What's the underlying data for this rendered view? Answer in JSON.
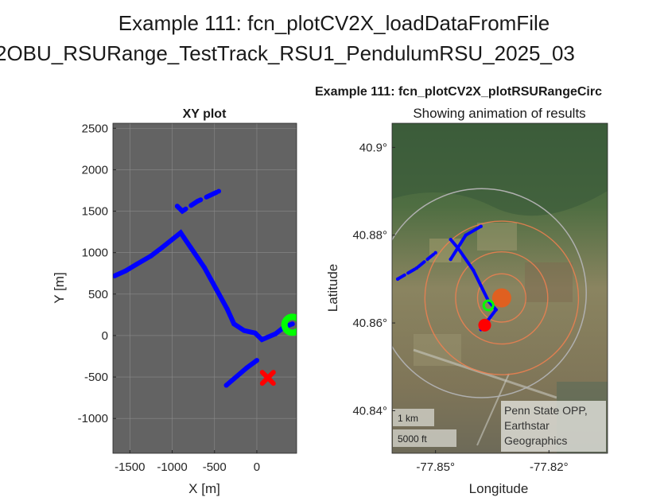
{
  "figure": {
    "title_line1": "Example 111: fcn_plotCV2X_loadDataFromFile",
    "title_line2": "2OBU_RSURange_TestTrack_RSU1_PendulumRSU_2025_03"
  },
  "colors": {
    "trace": "#0000ff",
    "start_marker": "#00ff00",
    "end_marker": "#ff0000",
    "rsu": "#e06020",
    "range_circle": "#f08050",
    "outer_circle": "#b0b0b0",
    "plot_bg": "#636363"
  },
  "chart_data": [
    {
      "type": "scatter",
      "title": "XY plot",
      "xlabel": "X [m]",
      "ylabel": "Y [m]",
      "xlim": [
        -1700,
        470
      ],
      "ylim": [
        -1420,
        2560
      ],
      "grid": true,
      "xticks": [
        -1500,
        -1000,
        -500,
        0
      ],
      "yticks": [
        -1000,
        -500,
        0,
        500,
        1000,
        1500,
        2000,
        2500
      ],
      "series": [
        {
          "values": [
            [
              -1680,
              720
            ],
            [
              -1550,
              780
            ],
            [
              -1420,
              860
            ],
            [
              -1250,
              960
            ],
            [
              -1120,
              1060
            ],
            [
              -900,
              1240
            ],
            [
              -860,
              1180
            ],
            [
              -780,
              1060
            ],
            [
              -620,
              820
            ],
            [
              -480,
              560
            ],
            [
              -350,
              320
            ],
            [
              -270,
              140
            ],
            [
              -150,
              60
            ],
            [
              -20,
              30
            ],
            [
              60,
              -50
            ],
            [
              220,
              20
            ],
            [
              320,
              100
            ],
            [
              420,
              140
            ],
            [
              -940,
              1560
            ],
            [
              -880,
              1500
            ],
            [
              -700,
              1620
            ],
            [
              -450,
              1740
            ],
            [
              0,
              -300
            ],
            [
              -120,
              -390
            ],
            [
              -360,
              -600
            ]
          ]
        }
      ],
      "start_marker": [
        420,
        130
      ],
      "end_marker": [
        130,
        -510
      ]
    },
    {
      "type": "map",
      "title": "Example 111: fcn_plotCV2X_plotRSURangeCirc",
      "subtitle": "Showing animation of results",
      "xlabel": "Longitude",
      "ylabel": "Latitude",
      "xticks": [
        "-77.85°",
        "-77.82°"
      ],
      "yticks": [
        "40.9°",
        "40.88°",
        "40.86°",
        "40.84°"
      ],
      "xlim": [
        -77.8615,
        -77.8045
      ],
      "ylim": [
        40.8303,
        40.9055
      ],
      "grid": false,
      "scalebar": [
        "1 km",
        "5000 ft"
      ],
      "attribution": [
        "Penn State OPP,",
        "Earthstar",
        "Geographics"
      ],
      "rsu_center": [
        -77.8325,
        40.8657
      ],
      "range_circle_radii_deg_lat": [
        0.0055,
        0.0105,
        0.0175
      ],
      "outer_circle_radius_deg_lat": 0.0238,
      "trace_lonlat": [
        [
          -77.86,
          40.87
        ],
        [
          -77.855,
          40.8725
        ],
        [
          -77.85,
          40.876
        ],
        [
          -77.846,
          40.879
        ],
        [
          -77.844,
          40.877
        ],
        [
          -77.84,
          40.872
        ],
        [
          -77.836,
          40.865
        ],
        [
          -77.834,
          40.863
        ],
        [
          -77.838,
          40.8585
        ],
        [
          -77.846,
          40.8745
        ],
        [
          -77.842,
          40.88
        ],
        [
          -77.838,
          40.882
        ]
      ],
      "start_marker": [
        -77.836,
        40.864
      ],
      "end_marker": [
        -77.837,
        40.8595
      ]
    }
  ]
}
